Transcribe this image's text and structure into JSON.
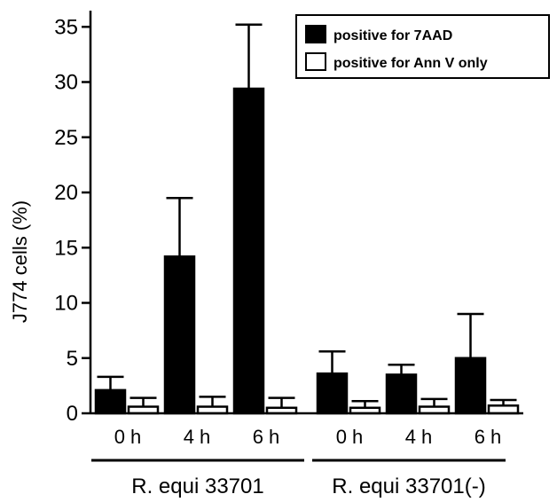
{
  "chart_data": {
    "type": "bar",
    "ylabel": "J774 cells (%)",
    "ylim": [
      0,
      36
    ],
    "yticks": [
      0,
      5,
      10,
      15,
      20,
      25,
      30,
      35
    ],
    "categories": [
      "0 h",
      "4 h",
      "6 h",
      "0 h",
      "4 h",
      "6 h"
    ],
    "groups": [
      {
        "label": "R. equi 33701",
        "categories": [
          "0 h",
          "4 h",
          "6 h"
        ]
      },
      {
        "label": "R. equi 33701(-)",
        "categories": [
          "0 h",
          "4 h",
          "6 h"
        ]
      }
    ],
    "series": [
      {
        "name": "positive for 7AAD",
        "color": "#000000",
        "values": [
          2.1,
          14.2,
          29.4,
          3.6,
          3.5,
          5.0
        ],
        "errors": [
          1.2,
          5.3,
          5.8,
          2.0,
          0.9,
          4.0
        ]
      },
      {
        "name": "positive for Ann V only",
        "color": "#ffffff",
        "values": [
          0.6,
          0.6,
          0.5,
          0.5,
          0.6,
          0.7
        ],
        "errors": [
          0.8,
          0.9,
          0.9,
          0.6,
          0.7,
          0.5
        ]
      }
    ],
    "legend": "top-right",
    "grid": false
  }
}
